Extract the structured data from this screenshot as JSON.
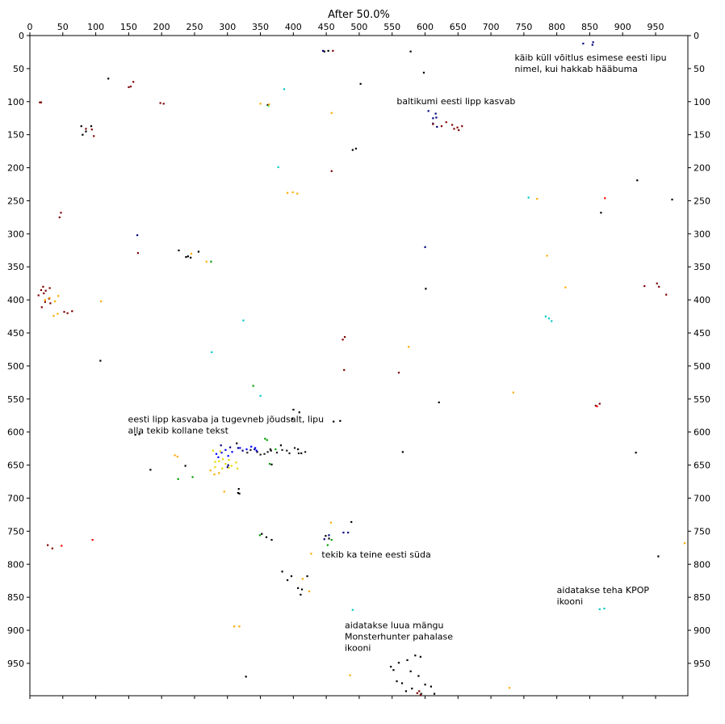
{
  "chart_data": {
    "type": "scatter",
    "title": "After 50.0%",
    "xlim": [
      0,
      999
    ],
    "ylim": [
      999,
      0
    ],
    "y_inverted": true,
    "x_ticks": [
      0,
      50,
      100,
      150,
      200,
      250,
      300,
      350,
      400,
      450,
      500,
      550,
      600,
      650,
      700,
      750,
      800,
      850,
      900,
      950
    ],
    "y_ticks": [
      0,
      50,
      100,
      150,
      200,
      250,
      300,
      350,
      400,
      450,
      500,
      550,
      600,
      650,
      700,
      750,
      800,
      850,
      900,
      950
    ],
    "x_tick_labels": [
      "0",
      "50",
      "100",
      "150",
      "200",
      "250",
      "300",
      "350",
      "400",
      "450",
      "500",
      "550",
      "600",
      "650",
      "700",
      "750",
      "800",
      "850",
      "900",
      "950"
    ],
    "y_tick_labels": [
      "0",
      "50",
      "100",
      "150",
      "200",
      "250",
      "300",
      "350",
      "400",
      "450",
      "500",
      "550",
      "600",
      "650",
      "700",
      "750",
      "800",
      "850",
      "900",
      "950"
    ],
    "y_ticks_both_sides": true,
    "x_ticks_top_and_bottom": true,
    "grid": false,
    "annotations": [
      {
        "lines": [
          "käib küll võitlus esimese eesti lipu",
          "nimel, kui hakkab hääbuma"
        ],
        "x": 736,
        "y": 38
      },
      {
        "lines": [
          "baltikumi eesti lipp kasvab"
        ],
        "x": 557,
        "y": 104
      },
      {
        "lines": [
          "eesti lipp kasvaba ja tugevneb jõudsalt, lipu",
          "alla tekib kollane tekst"
        ],
        "x": 149,
        "y": 585
      },
      {
        "lines": [
          "tekib ka teine eesti süda"
        ],
        "x": 443,
        "y": 790
      },
      {
        "lines": [
          "aidatakse teha KPOP",
          "ikooni"
        ],
        "x": 800,
        "y": 844
      },
      {
        "lines": [
          "aidatakse luua mängu",
          "Monsterhunter pahalase",
          "ikooni"
        ],
        "x": 478,
        "y": 897
      }
    ],
    "series": [
      {
        "color": "#000000",
        "points": [
          [
            447,
            24
          ],
          [
            453,
            23
          ],
          [
            578,
            24
          ],
          [
            598,
            56
          ],
          [
            502,
            73
          ],
          [
            119,
            65
          ],
          [
            78,
            137
          ],
          [
            85,
            145
          ],
          [
            93,
            137
          ],
          [
            80,
            150
          ],
          [
            361,
            105
          ],
          [
            490,
            173
          ],
          [
            495,
            171
          ],
          [
            226,
            325
          ],
          [
            237,
            335
          ],
          [
            256,
            327
          ],
          [
            240,
            334
          ],
          [
            244,
            336
          ],
          [
            314,
            617
          ],
          [
            922,
            219
          ],
          [
            975,
            248
          ],
          [
            867,
            268
          ],
          [
            601,
            383
          ],
          [
            107,
            492
          ],
          [
            160,
            604
          ],
          [
            166,
            603
          ],
          [
            183,
            657
          ],
          [
            236,
            651
          ],
          [
            345,
            630
          ],
          [
            365,
            626
          ],
          [
            381,
            620
          ],
          [
            366,
            628
          ],
          [
            407,
            626
          ],
          [
            412,
            632
          ],
          [
            317,
            686
          ],
          [
            318,
            693
          ],
          [
            316,
            692
          ],
          [
            367,
            649
          ],
          [
            352,
            754
          ],
          [
            359,
            759
          ],
          [
            367,
            763
          ],
          [
            383,
            811
          ],
          [
            391,
            824
          ],
          [
            397,
            818
          ],
          [
            407,
            836
          ],
          [
            411,
            846
          ],
          [
            413,
            838
          ],
          [
            421,
            818
          ],
          [
            488,
            736
          ],
          [
            461,
            584
          ],
          [
            471,
            583
          ],
          [
            449,
            757
          ],
          [
            454,
            761
          ],
          [
            328,
            970
          ],
          [
            920,
            631
          ],
          [
            621,
            555
          ],
          [
            566,
            630
          ],
          [
            400,
            566
          ],
          [
            409,
            570
          ],
          [
            398,
            580
          ],
          [
            954,
            788
          ],
          [
            548,
            955
          ],
          [
            552,
            960
          ],
          [
            560,
            949
          ],
          [
            573,
            945
          ],
          [
            585,
            938
          ],
          [
            593,
            940
          ],
          [
            565,
            980
          ],
          [
            571,
            992
          ],
          [
            580,
            988
          ],
          [
            594,
            996
          ],
          [
            600,
            982
          ],
          [
            609,
            985
          ],
          [
            557,
            977
          ],
          [
            590,
            969
          ],
          [
            614,
            996
          ],
          [
            578,
            962
          ]
        ]
      },
      {
        "color": "#00007f",
        "points": [
          [
            445,
            23
          ],
          [
            840,
            12
          ],
          [
            855,
            10
          ],
          [
            854,
            14
          ],
          [
            616,
            118
          ],
          [
            612,
            125
          ],
          [
            618,
            138
          ],
          [
            612,
            133
          ],
          [
            600,
            320
          ],
          [
            163,
            302
          ],
          [
            290,
            620
          ],
          [
            304,
            623
          ],
          [
            316,
            624
          ],
          [
            323,
            628
          ],
          [
            341,
            626
          ],
          [
            301,
            650
          ],
          [
            300,
            653
          ],
          [
            476,
            752
          ],
          [
            483,
            752
          ],
          [
            447,
            762
          ],
          [
            454,
            756
          ],
          [
            605,
            114
          ],
          [
            617,
            124
          ]
        ]
      },
      {
        "color": "#0000ff",
        "points": [
          [
            283,
            633
          ],
          [
            291,
            631
          ],
          [
            297,
            627
          ],
          [
            307,
            630
          ],
          [
            319,
            624
          ],
          [
            329,
            626
          ],
          [
            336,
            622
          ],
          [
            342,
            624
          ],
          [
            344,
            628
          ],
          [
            286,
            638
          ],
          [
            301,
            636
          ]
        ]
      },
      {
        "color": "#7f0000",
        "points": [
          [
            15,
            101
          ],
          [
            17,
            101
          ],
          [
            85,
            141
          ],
          [
            94,
            142
          ],
          [
            97,
            152
          ],
          [
            153,
            77
          ],
          [
            150,
            78
          ],
          [
            157,
            70
          ],
          [
            198,
            102
          ],
          [
            203,
            103
          ],
          [
            47,
            268
          ],
          [
            45,
            275
          ],
          [
            164,
            329
          ],
          [
            52,
            418
          ],
          [
            57,
            420
          ],
          [
            64,
            417
          ],
          [
            612,
            134
          ],
          [
            625,
            137
          ],
          [
            632,
            131
          ],
          [
            641,
            135
          ],
          [
            644,
            141
          ],
          [
            649,
            139
          ],
          [
            656,
            137
          ],
          [
            651,
            143
          ],
          [
            933,
            379
          ],
          [
            952,
            375
          ],
          [
            955,
            380
          ],
          [
            966,
            392
          ],
          [
            859,
            560
          ],
          [
            865,
            557
          ],
          [
            588,
            995
          ],
          [
            591,
            992
          ],
          [
            593,
            998
          ],
          [
            477,
            506
          ],
          [
            475,
            460
          ],
          [
            478,
            456
          ],
          [
            560,
            510
          ],
          [
            458,
            205
          ],
          [
            34,
            776
          ],
          [
            27,
            771
          ],
          [
            460,
            23
          ],
          [
            20,
            380
          ],
          [
            24,
            386
          ],
          [
            21,
            390
          ],
          [
            23,
            403
          ],
          [
            18,
            411
          ],
          [
            31,
            405
          ],
          [
            29,
            398
          ],
          [
            13,
            393
          ],
          [
            17,
            385
          ],
          [
            30,
            382
          ]
        ]
      },
      {
        "color": "#ff0000",
        "points": [
          [
            48,
            772
          ],
          [
            95,
            763
          ],
          [
            873,
            246
          ],
          [
            861,
            561
          ]
        ]
      },
      {
        "color": "#ffaa00",
        "points": [
          [
            391,
            238
          ],
          [
            399,
            237
          ],
          [
            406,
            239
          ],
          [
            350,
            103
          ],
          [
            363,
            104
          ],
          [
            458,
            117
          ],
          [
            268,
            342
          ],
          [
            245,
            330
          ],
          [
            108,
            402
          ],
          [
            23,
            400
          ],
          [
            30,
            397
          ],
          [
            38,
            402
          ],
          [
            43,
            394
          ],
          [
            42,
            421
          ],
          [
            36,
            424
          ],
          [
            220,
            635
          ],
          [
            224,
            637
          ],
          [
            280,
            664
          ],
          [
            287,
            662
          ],
          [
            274,
            658
          ],
          [
            295,
            690
          ],
          [
            310,
            894
          ],
          [
            318,
            894
          ],
          [
            414,
            822
          ],
          [
            424,
            841
          ],
          [
            427,
            784
          ],
          [
            486,
            968
          ],
          [
            728,
            987
          ],
          [
            813,
            381
          ],
          [
            734,
            540
          ],
          [
            785,
            333
          ],
          [
            770,
            247
          ],
          [
            575,
            471
          ],
          [
            994,
            768
          ],
          [
            457,
            737
          ]
        ]
      },
      {
        "color": "#e6d800",
        "points": [
          [
            281,
            645
          ],
          [
            287,
            644
          ],
          [
            293,
            641
          ],
          [
            297,
            648
          ],
          [
            302,
            642
          ],
          [
            306,
            651
          ],
          [
            313,
            646
          ],
          [
            281,
            653
          ],
          [
            292,
            655
          ],
          [
            302,
            654
          ],
          [
            315,
            655
          ],
          [
            278,
            628
          ],
          [
            289,
            629
          ]
        ]
      },
      {
        "color": "#00a000",
        "points": [
          [
            225,
            671
          ],
          [
            247,
            668
          ],
          [
            275,
            342
          ],
          [
            357,
            610
          ],
          [
            360,
            612
          ],
          [
            339,
            530
          ],
          [
            452,
            771
          ],
          [
            458,
            763
          ],
          [
            349,
            756
          ],
          [
            364,
            648
          ],
          [
            373,
            626
          ]
        ]
      },
      {
        "color": "#00c8c8",
        "points": [
          [
            377,
            199
          ],
          [
            386,
            81
          ],
          [
            324,
            431
          ],
          [
            276,
            479
          ],
          [
            350,
            545
          ],
          [
            757,
            245
          ],
          [
            490,
            869
          ],
          [
            788,
            428
          ],
          [
            783,
            425
          ],
          [
            792,
            432
          ],
          [
            865,
            868
          ],
          [
            872,
            867
          ]
        ]
      },
      {
        "color": "#7fff7f",
        "points": [
          [
            362,
            107
          ]
        ]
      },
      {
        "color": "#1e1e1e",
        "points": [
          [
            330,
            631
          ],
          [
            335,
            627
          ],
          [
            350,
            634
          ],
          [
            356,
            633
          ],
          [
            361,
            630
          ],
          [
            375,
            631
          ],
          [
            383,
            627
          ],
          [
            390,
            628
          ],
          [
            394,
            632
          ],
          [
            402,
            624
          ],
          [
            408,
            632
          ],
          [
            418,
            630
          ]
        ]
      }
    ]
  }
}
